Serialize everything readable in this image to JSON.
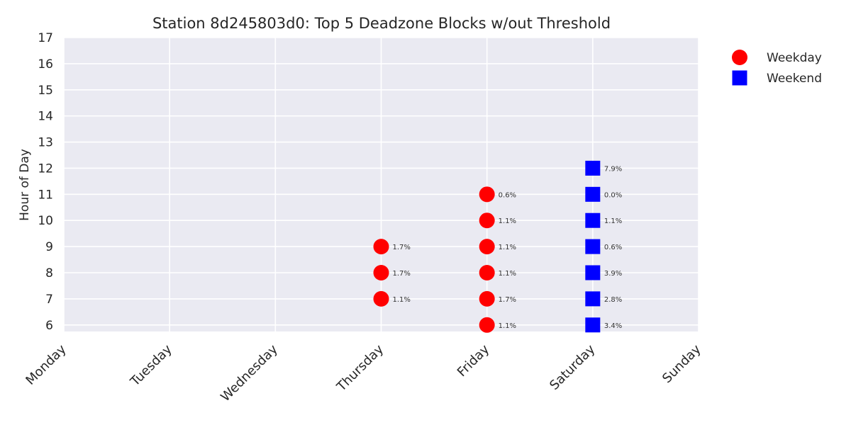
{
  "chart_data": {
    "type": "scatter",
    "title": "Station 8d245803d0: Top 5 Deadzone Blocks w/out Threshold",
    "ylabel": "Hour of Day",
    "xlabel": "",
    "categories": [
      "Monday",
      "Tuesday",
      "Wednesday",
      "Thursday",
      "Friday",
      "Saturday",
      "Sunday"
    ],
    "yticks": [
      6,
      7,
      8,
      9,
      10,
      11,
      12,
      13,
      14,
      15,
      16,
      17
    ],
    "ylim": [
      5.75,
      17
    ],
    "grid": true,
    "legend_position": "outside-top-right",
    "series": [
      {
        "name": "Weekday",
        "marker": "circle",
        "color": "#ff0000",
        "points": [
          {
            "day": "Thursday",
            "hour": 7,
            "label": "1.1%"
          },
          {
            "day": "Thursday",
            "hour": 8,
            "label": "1.7%"
          },
          {
            "day": "Thursday",
            "hour": 9,
            "label": "1.7%"
          },
          {
            "day": "Friday",
            "hour": 6,
            "label": "1.1%"
          },
          {
            "day": "Friday",
            "hour": 7,
            "label": "1.7%"
          },
          {
            "day": "Friday",
            "hour": 8,
            "label": "1.1%"
          },
          {
            "day": "Friday",
            "hour": 9,
            "label": "1.1%"
          },
          {
            "day": "Friday",
            "hour": 10,
            "label": "1.1%"
          },
          {
            "day": "Friday",
            "hour": 11,
            "label": "0.6%"
          }
        ]
      },
      {
        "name": "Weekend",
        "marker": "square",
        "color": "#0000ff",
        "points": [
          {
            "day": "Saturday",
            "hour": 6,
            "label": "3.4%"
          },
          {
            "day": "Saturday",
            "hour": 7,
            "label": "2.8%"
          },
          {
            "day": "Saturday",
            "hour": 8,
            "label": "3.9%"
          },
          {
            "day": "Saturday",
            "hour": 9,
            "label": "0.6%"
          },
          {
            "day": "Saturday",
            "hour": 10,
            "label": "1.1%"
          },
          {
            "day": "Saturday",
            "hour": 11,
            "label": "0.0%"
          },
          {
            "day": "Saturday",
            "hour": 12,
            "label": "7.9%"
          }
        ]
      }
    ]
  }
}
